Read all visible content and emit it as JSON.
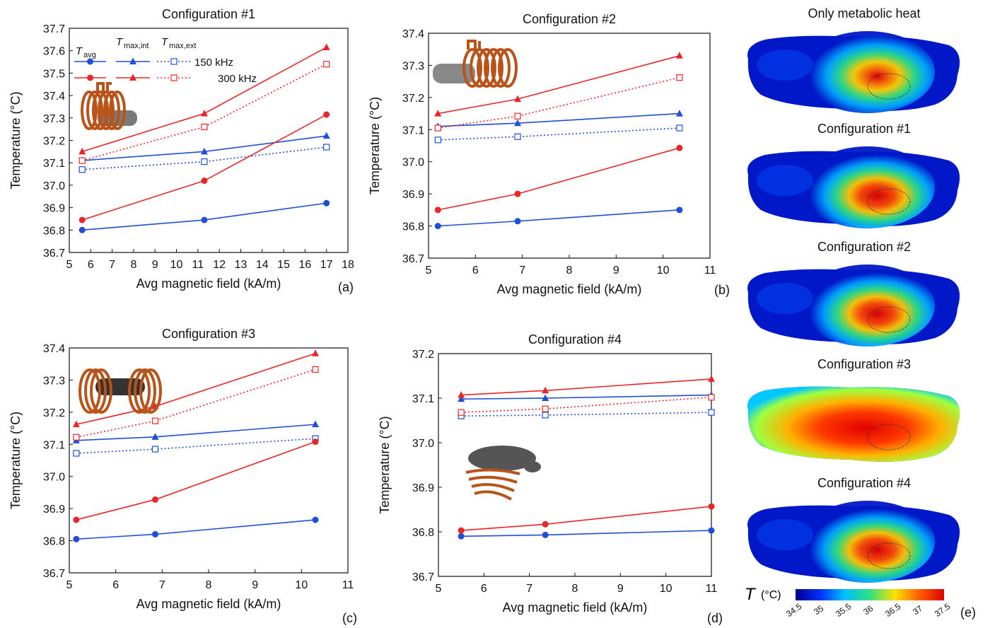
{
  "legend": {
    "col_headers": [
      {
        "main": "T",
        "sub": "avg"
      },
      {
        "main": "T",
        "sub": "max,int"
      },
      {
        "main": "T",
        "sub": "max,ext"
      }
    ],
    "rows": [
      "150 kHz",
      "300 kHz"
    ]
  },
  "colors": {
    "f150": "#1f4fd6",
    "f300": "#e8262a"
  },
  "chart_data": [
    {
      "type": "line",
      "panel": "(a)",
      "title": "Configuration #1",
      "xlabel": "Avg magnetic field (kA/m)",
      "ylabel": "Temperature (°C)",
      "xlim": [
        5,
        18
      ],
      "ylim": [
        36.7,
        37.7
      ],
      "xticks": [
        5,
        6,
        7,
        8,
        9,
        10,
        11,
        12,
        13,
        14,
        15,
        16,
        17,
        18
      ],
      "yticks": [
        "36.7",
        "36.8",
        "36.9",
        "37.0",
        "37.1",
        "37.2",
        "37.3",
        "37.4",
        "37.5",
        "37.6",
        "37.7"
      ],
      "x": [
        5.6,
        11.3,
        17.0
      ],
      "series": [
        {
          "freq": "150 kHz",
          "metric": "avg",
          "values": [
            36.8,
            36.845,
            36.92
          ]
        },
        {
          "freq": "150 kHz",
          "metric": "max,int",
          "values": [
            37.11,
            37.15,
            37.22
          ]
        },
        {
          "freq": "150 kHz",
          "metric": "max,ext",
          "values": [
            37.07,
            37.105,
            37.17
          ]
        },
        {
          "freq": "300 kHz",
          "metric": "avg",
          "values": [
            36.845,
            37.02,
            37.315
          ]
        },
        {
          "freq": "300 kHz",
          "metric": "max,int",
          "values": [
            37.15,
            37.32,
            37.615
          ]
        },
        {
          "freq": "300 kHz",
          "metric": "max,ext",
          "values": [
            37.11,
            37.26,
            37.54
          ]
        }
      ]
    },
    {
      "type": "line",
      "panel": "(b)",
      "title": "Configuration #2",
      "xlabel": "Avg magnetic field (kA/m)",
      "ylabel": "Temperature (°C)",
      "xlim": [
        5,
        11
      ],
      "ylim": [
        36.7,
        37.4
      ],
      "xticks": [
        5,
        6,
        7,
        8,
        9,
        10,
        11
      ],
      "yticks": [
        "36.7",
        "36.8",
        "36.9",
        "37.0",
        "37.1",
        "37.2",
        "37.3",
        "37.4"
      ],
      "x": [
        5.2,
        6.9,
        10.35
      ],
      "series": [
        {
          "freq": "150 kHz",
          "metric": "avg",
          "values": [
            36.8,
            36.815,
            36.85
          ]
        },
        {
          "freq": "150 kHz",
          "metric": "max,int",
          "values": [
            37.11,
            37.12,
            37.15
          ]
        },
        {
          "freq": "150 kHz",
          "metric": "max,ext",
          "values": [
            37.068,
            37.078,
            37.105
          ]
        },
        {
          "freq": "300 kHz",
          "metric": "avg",
          "values": [
            36.85,
            36.9,
            37.043
          ]
        },
        {
          "freq": "300 kHz",
          "metric": "max,int",
          "values": [
            37.15,
            37.195,
            37.33
          ]
        },
        {
          "freq": "300 kHz",
          "metric": "max,ext",
          "values": [
            37.105,
            37.142,
            37.262
          ]
        }
      ]
    },
    {
      "type": "line",
      "panel": "(c)",
      "title": "Configuration #3",
      "xlabel": "Avg magnetic field (kA/m)",
      "ylabel": "Temperature (°C)",
      "xlim": [
        5,
        11
      ],
      "ylim": [
        36.7,
        37.4
      ],
      "xticks": [
        5,
        6,
        7,
        8,
        9,
        10,
        11
      ],
      "yticks": [
        "36.7",
        "36.8",
        "36.9",
        "37.0",
        "37.1",
        "37.2",
        "37.3",
        "37.4"
      ],
      "x": [
        5.15,
        6.85,
        10.3
      ],
      "series": [
        {
          "freq": "150 kHz",
          "metric": "avg",
          "values": [
            36.805,
            36.82,
            36.865
          ]
        },
        {
          "freq": "150 kHz",
          "metric": "max,int",
          "values": [
            37.112,
            37.123,
            37.162
          ]
        },
        {
          "freq": "150 kHz",
          "metric": "max,ext",
          "values": [
            37.072,
            37.085,
            37.118
          ]
        },
        {
          "freq": "300 kHz",
          "metric": "avg",
          "values": [
            36.865,
            36.928,
            37.108
          ]
        },
        {
          "freq": "300 kHz",
          "metric": "max,int",
          "values": [
            37.162,
            37.218,
            37.383
          ]
        },
        {
          "freq": "300 kHz",
          "metric": "max,ext",
          "values": [
            37.122,
            37.173,
            37.333
          ]
        }
      ]
    },
    {
      "type": "line",
      "panel": "(d)",
      "title": "Configuration #4",
      "xlabel": "Avg magnetic field (kA/m)",
      "ylabel": "Temperature (°C)",
      "xlim": [
        5,
        11
      ],
      "ylim": [
        36.7,
        37.2
      ],
      "xticks": [
        5,
        6,
        7,
        8,
        9,
        10,
        11
      ],
      "yticks": [
        "36.7",
        "36.8",
        "36.9",
        "37.0",
        "37.1",
        "37.2"
      ],
      "x": [
        5.5,
        7.35,
        11.0
      ],
      "series": [
        {
          "freq": "150 kHz",
          "metric": "avg",
          "values": [
            36.79,
            36.793,
            36.803
          ]
        },
        {
          "freq": "150 kHz",
          "metric": "max,int",
          "values": [
            37.098,
            37.1,
            37.107
          ]
        },
        {
          "freq": "150 kHz",
          "metric": "max,ext",
          "values": [
            37.06,
            37.062,
            37.068
          ]
        },
        {
          "freq": "300 kHz",
          "metric": "avg",
          "values": [
            36.803,
            36.817,
            36.857
          ]
        },
        {
          "freq": "300 kHz",
          "metric": "max,int",
          "values": [
            37.107,
            37.117,
            37.143
          ]
        },
        {
          "freq": "300 kHz",
          "metric": "max,ext",
          "values": [
            37.068,
            37.076,
            37.102
          ]
        }
      ]
    },
    {
      "type": "heatmap",
      "panel": "(e)",
      "maps": [
        {
          "title": "Only metabolic heat",
          "hot": 0.35
        },
        {
          "title": "Configuration #1",
          "hot": 0.7
        },
        {
          "title": "Configuration #2",
          "hot": 0.75
        },
        {
          "title": "Configuration #3",
          "hot": 1.0
        },
        {
          "title": "Configuration #4",
          "hot": 0.65
        }
      ],
      "colorbar": {
        "label_main": "T",
        "label_unit": "(°C)",
        "ticks": [
          "34.5",
          "35",
          "35.5",
          "36",
          "36.5",
          "37",
          "37.5"
        ],
        "colors": [
          "#00008f",
          "#0030ff",
          "#00c0ff",
          "#30e080",
          "#ffe000",
          "#ff6000",
          "#e00000"
        ]
      }
    }
  ]
}
